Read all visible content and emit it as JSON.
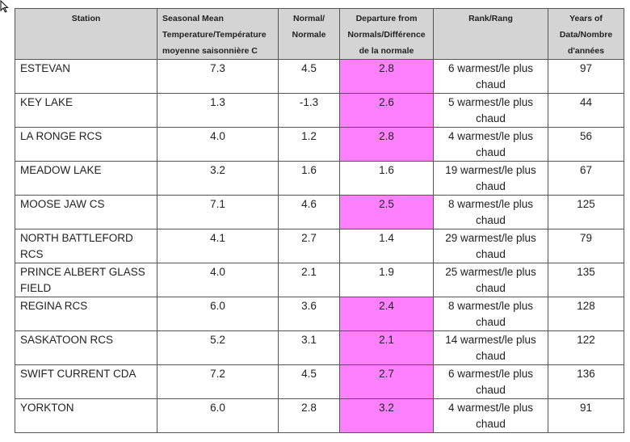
{
  "headers": {
    "station": "Station",
    "mean": "Seasonal  Mean Temperature/Température moyenne saisonnière  C",
    "normal": "Normal/ Normale",
    "departure": "Departure from Normals/Différence de la normale",
    "rank": "Rank/Rang",
    "years": "Years of Data/Nombre d'années"
  },
  "highlight_color": "#ff80ff",
  "rows": [
    {
      "station": "ESTEVAN",
      "mean": "7.3",
      "normal": "4.5",
      "departure": "2.8",
      "highlight": true,
      "rank": "6 warmest/le plus chaud",
      "years": "97"
    },
    {
      "station": "KEY LAKE",
      "mean": "1.3",
      "normal": "-1.3",
      "departure": "2.6",
      "highlight": true,
      "rank": "5 warmest/le plus chaud",
      "years": "44"
    },
    {
      "station": "LA RONGE RCS",
      "mean": "4.0",
      "normal": "1.2",
      "departure": "2.8",
      "highlight": true,
      "rank": "4 warmest/le plus chaud",
      "years": "56"
    },
    {
      "station": "MEADOW LAKE",
      "mean": "3.2",
      "normal": "1.6",
      "departure": "1.6",
      "highlight": false,
      "rank": "19 warmest/le plus chaud",
      "years": "67"
    },
    {
      "station": "MOOSE JAW CS",
      "mean": "7.1",
      "normal": "4.6",
      "departure": "2.5",
      "highlight": true,
      "rank": "8 warmest/le plus chaud",
      "years": "125"
    },
    {
      "station": "NORTH BATTLEFORD RCS",
      "mean": "4.1",
      "normal": "2.7",
      "departure": "1.4",
      "highlight": false,
      "rank": "29 warmest/le plus chaud",
      "years": "79"
    },
    {
      "station": "PRINCE ALBERT GLASS FIELD",
      "mean": "4.0",
      "normal": "2.1",
      "departure": "1.9",
      "highlight": false,
      "rank": "25 warmest/le plus chaud",
      "years": "135"
    },
    {
      "station": "REGINA RCS",
      "mean": "6.0",
      "normal": "3.6",
      "departure": "2.4",
      "highlight": true,
      "rank": "8 warmest/le plus chaud",
      "years": "128"
    },
    {
      "station": "SASKATOON RCS",
      "mean": "5.2",
      "normal": "3.1",
      "departure": "2.1",
      "highlight": true,
      "rank": "14 warmest/le plus chaud",
      "years": "122"
    },
    {
      "station": "SWIFT CURRENT CDA",
      "mean": "7.2",
      "normal": "4.5",
      "departure": "2.7",
      "highlight": true,
      "rank": "6 warmest/le plus chaud",
      "years": "136"
    },
    {
      "station": "YORKTON",
      "mean": "6.0",
      "normal": "2.8",
      "departure": "3.2",
      "highlight": true,
      "rank": "4 warmest/le plus chaud",
      "years": "91"
    }
  ]
}
